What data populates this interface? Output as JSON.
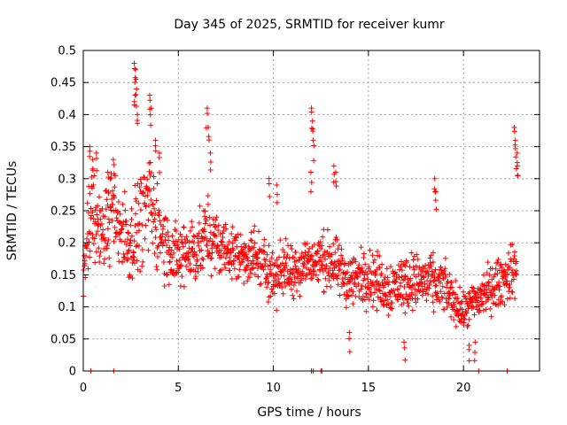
{
  "chart_data": {
    "type": "scatter",
    "title": "Day 345 of 2025, SRMTID for receiver kumr",
    "xlabel": "GPS time / hours",
    "ylabel": "SRMTID / TECUs",
    "xlim": [
      0,
      24
    ],
    "ylim": [
      0,
      0.5
    ],
    "xticks": [
      0,
      5,
      10,
      15,
      20
    ],
    "xtick_labels": [
      "0",
      "5",
      "10",
      "15",
      "20"
    ],
    "yticks": [
      0,
      0.05,
      0.1,
      0.15,
      0.2,
      0.25,
      0.3,
      0.35,
      0.4,
      0.45,
      0.5
    ],
    "ytick_labels": [
      "0",
      "0.05",
      "0.1",
      "0.15",
      "0.2",
      "0.25",
      "0.3",
      "0.35",
      "0.4",
      "0.45",
      "0.5"
    ],
    "grid": true,
    "legend": "none",
    "marker": "plus",
    "color": "#ff0000",
    "series": [
      {
        "name": "SRMTID",
        "profile": [
          {
            "x": 0.0,
            "y": 0.15,
            "spread": 0.05
          },
          {
            "x": 0.5,
            "y": 0.25,
            "spread": 0.07
          },
          {
            "x": 1.0,
            "y": 0.21,
            "spread": 0.07
          },
          {
            "x": 1.5,
            "y": 0.25,
            "spread": 0.06
          },
          {
            "x": 2.0,
            "y": 0.22,
            "spread": 0.06
          },
          {
            "x": 2.5,
            "y": 0.2,
            "spread": 0.06
          },
          {
            "x": 3.0,
            "y": 0.24,
            "spread": 0.07
          },
          {
            "x": 3.5,
            "y": 0.26,
            "spread": 0.07
          },
          {
            "x": 4.0,
            "y": 0.22,
            "spread": 0.06
          },
          {
            "x": 4.5,
            "y": 0.19,
            "spread": 0.05
          },
          {
            "x": 5.0,
            "y": 0.17,
            "spread": 0.05
          },
          {
            "x": 5.5,
            "y": 0.19,
            "spread": 0.05
          },
          {
            "x": 6.0,
            "y": 0.19,
            "spread": 0.05
          },
          {
            "x": 6.5,
            "y": 0.21,
            "spread": 0.05
          },
          {
            "x": 7.0,
            "y": 0.2,
            "spread": 0.04
          },
          {
            "x": 8.0,
            "y": 0.18,
            "spread": 0.04
          },
          {
            "x": 9.0,
            "y": 0.18,
            "spread": 0.04
          },
          {
            "x": 10.0,
            "y": 0.15,
            "spread": 0.04
          },
          {
            "x": 11.0,
            "y": 0.16,
            "spread": 0.04
          },
          {
            "x": 12.0,
            "y": 0.17,
            "spread": 0.04
          },
          {
            "x": 13.0,
            "y": 0.17,
            "spread": 0.04
          },
          {
            "x": 14.0,
            "y": 0.14,
            "spread": 0.04
          },
          {
            "x": 15.0,
            "y": 0.15,
            "spread": 0.04
          },
          {
            "x": 16.0,
            "y": 0.13,
            "spread": 0.04
          },
          {
            "x": 17.0,
            "y": 0.14,
            "spread": 0.04
          },
          {
            "x": 18.0,
            "y": 0.14,
            "spread": 0.04
          },
          {
            "x": 19.0,
            "y": 0.13,
            "spread": 0.035
          },
          {
            "x": 20.0,
            "y": 0.09,
            "spread": 0.025
          },
          {
            "x": 21.0,
            "y": 0.12,
            "spread": 0.035
          },
          {
            "x": 22.0,
            "y": 0.14,
            "spread": 0.035
          },
          {
            "x": 22.8,
            "y": 0.16,
            "spread": 0.04
          }
        ],
        "peaks": [
          {
            "x": 0.35,
            "y": 0.35
          },
          {
            "x": 0.5,
            "y": 0.33
          },
          {
            "x": 0.7,
            "y": 0.34
          },
          {
            "x": 1.3,
            "y": 0.31
          },
          {
            "x": 1.6,
            "y": 0.33
          },
          {
            "x": 2.7,
            "y": 0.48
          },
          {
            "x": 2.75,
            "y": 0.47
          },
          {
            "x": 2.8,
            "y": 0.44
          },
          {
            "x": 2.7,
            "y": 0.43
          },
          {
            "x": 2.85,
            "y": 0.4
          },
          {
            "x": 3.5,
            "y": 0.43
          },
          {
            "x": 3.55,
            "y": 0.41
          },
          {
            "x": 3.8,
            "y": 0.36
          },
          {
            "x": 4.0,
            "y": 0.34
          },
          {
            "x": 6.5,
            "y": 0.41
          },
          {
            "x": 6.6,
            "y": 0.38
          },
          {
            "x": 6.7,
            "y": 0.34
          },
          {
            "x": 9.8,
            "y": 0.3
          },
          {
            "x": 10.2,
            "y": 0.29
          },
          {
            "x": 12.0,
            "y": 0.41
          },
          {
            "x": 12.05,
            "y": 0.39
          },
          {
            "x": 12.1,
            "y": 0.36
          },
          {
            "x": 12.0,
            "y": 0.31
          },
          {
            "x": 13.2,
            "y": 0.32
          },
          {
            "x": 13.3,
            "y": 0.31
          },
          {
            "x": 18.5,
            "y": 0.3
          },
          {
            "x": 18.55,
            "y": 0.28
          },
          {
            "x": 22.7,
            "y": 0.38
          },
          {
            "x": 22.75,
            "y": 0.36
          },
          {
            "x": 22.8,
            "y": 0.34
          },
          {
            "x": 22.85,
            "y": 0.32
          },
          {
            "x": 20.3,
            "y": 0.04
          },
          {
            "x": 20.6,
            "y": 0.045
          },
          {
            "x": 16.9,
            "y": 0.045
          },
          {
            "x": 14.0,
            "y": 0.06
          }
        ],
        "zeros": [
          0.4,
          1.6,
          12.0,
          12.1,
          12.5,
          12.55,
          20.8,
          22.3
        ]
      }
    ]
  }
}
